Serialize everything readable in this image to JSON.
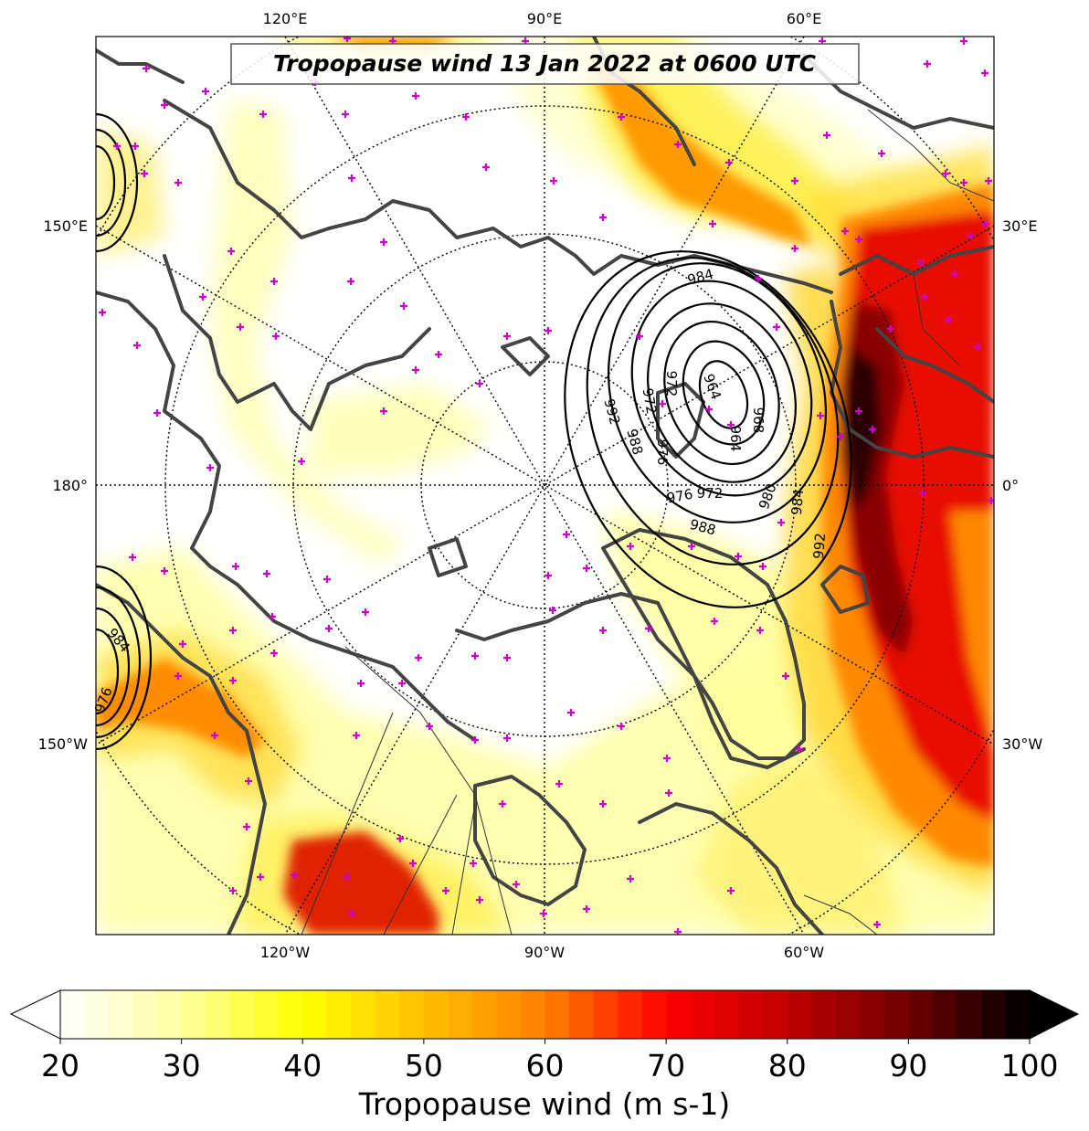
{
  "title": "Tropopause wind 13 Jan 2022 at 0600 UTC",
  "colorbar": {
    "label": "Tropopause wind (m s-1)",
    "ticks": [
      "20",
      "30",
      "40",
      "50",
      "60",
      "70",
      "80",
      "90",
      "100"
    ],
    "min": 20,
    "max": 100,
    "extend": "both",
    "stops": [
      {
        "value": 20,
        "color": "#ffffff"
      },
      {
        "value": 30,
        "color": "#ffff9e"
      },
      {
        "value": 40,
        "color": "#ffff00"
      },
      {
        "value": 50,
        "color": "#ffc000"
      },
      {
        "value": 60,
        "color": "#ff8000"
      },
      {
        "value": 70,
        "color": "#ff0000"
      },
      {
        "value": 80,
        "color": "#c00000"
      },
      {
        "value": 90,
        "color": "#700000"
      },
      {
        "value": 100,
        "color": "#000000"
      }
    ]
  },
  "longitude_labels": {
    "top": [
      "120°E",
      "90°E",
      "60°E"
    ],
    "bottom": [
      "120°W",
      "90°W",
      "60°W"
    ],
    "left": [
      "150°E",
      "180°",
      "150°W"
    ],
    "right": [
      "30°E",
      "0°",
      "30°W"
    ]
  },
  "pressure_contour_labels": [
    "984",
    "972",
    "964",
    "968",
    "964",
    "980",
    "972",
    "976",
    "992",
    "988",
    "976",
    "972",
    "980",
    "984",
    "988",
    "992",
    "984",
    "976"
  ],
  "colors": {
    "coastline": "#444444",
    "border": "#333333",
    "contour": "#000000",
    "marker": "#cc00cc",
    "graticule": "#000000"
  }
}
